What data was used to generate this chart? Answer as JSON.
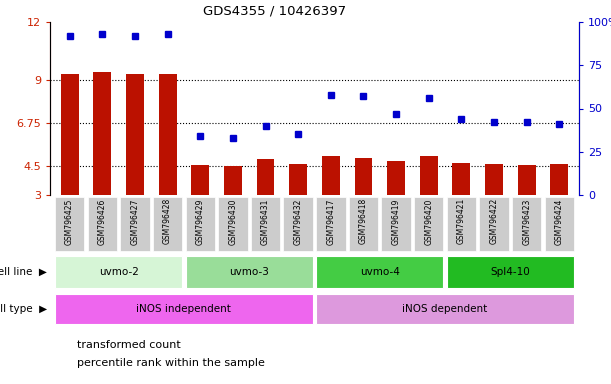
{
  "title": "GDS4355 / 10426397",
  "samples": [
    "GSM796425",
    "GSM796426",
    "GSM796427",
    "GSM796428",
    "GSM796429",
    "GSM796430",
    "GSM796431",
    "GSM796432",
    "GSM796417",
    "GSM796418",
    "GSM796419",
    "GSM796420",
    "GSM796421",
    "GSM796422",
    "GSM796423",
    "GSM796424"
  ],
  "red_bars": [
    9.3,
    9.4,
    9.3,
    9.3,
    4.55,
    4.5,
    4.85,
    4.6,
    5.05,
    4.95,
    4.75,
    5.05,
    4.65,
    4.6,
    4.58,
    4.6
  ],
  "blue_dots_pct": [
    92,
    93,
    92,
    93,
    34,
    33,
    40,
    35,
    58,
    57,
    47,
    56,
    44,
    42,
    42,
    41
  ],
  "ylim_left": [
    3,
    12
  ],
  "ylim_right": [
    0,
    100
  ],
  "yticks_left": [
    3,
    4.5,
    6.75,
    9,
    12
  ],
  "yticks_right": [
    0,
    25,
    50,
    75,
    100
  ],
  "ytick_labels_left": [
    "3",
    "4.5",
    "6.75",
    "9",
    "12"
  ],
  "ytick_labels_right": [
    "0",
    "25",
    "50",
    "75",
    "100%"
  ],
  "cell_lines": [
    {
      "label": "uvmo-2",
      "start": 0,
      "end": 3,
      "color": "#d6f5d6"
    },
    {
      "label": "uvmo-3",
      "start": 4,
      "end": 7,
      "color": "#99dd99"
    },
    {
      "label": "uvmo-4",
      "start": 8,
      "end": 11,
      "color": "#44cc44"
    },
    {
      "label": "Spl4-10",
      "start": 12,
      "end": 15,
      "color": "#22bb22"
    }
  ],
  "cell_types": [
    {
      "label": "iNOS independent",
      "start": 0,
      "end": 7,
      "color": "#ee66ee"
    },
    {
      "label": "iNOS dependent",
      "start": 8,
      "end": 15,
      "color": "#dd99dd"
    }
  ],
  "bar_color": "#bb1100",
  "dot_color": "#0000cc",
  "bg_color": "#ffffff",
  "axis_color_left": "#cc2200",
  "axis_color_right": "#0000cc",
  "sample_box_color": "#cccccc",
  "grid_color": "#000000"
}
